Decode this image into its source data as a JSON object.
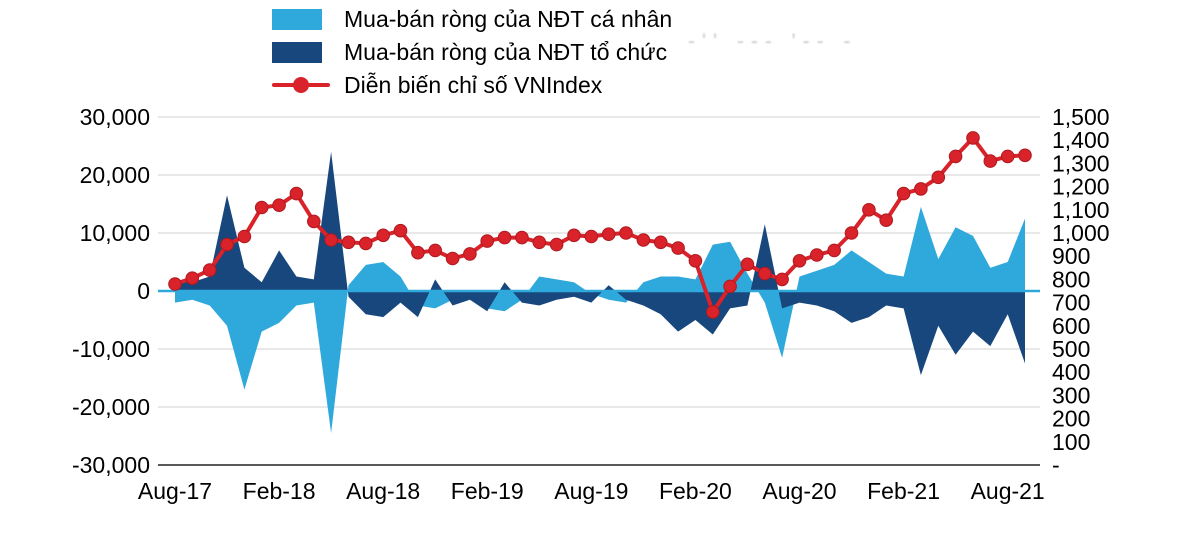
{
  "legend": [
    {
      "label": "Mua-bán ròng của NĐT cá nhân",
      "color": "#2FA9DC"
    },
    {
      "label": "Mua-bán ròng của NĐT tổ chức",
      "color": "#17477C"
    },
    {
      "label": "Diễn biến chỉ số VNIndex",
      "color": "#D92229"
    }
  ],
  "artifacts": {
    "smudge_text": "-''  ---  '--  -"
  },
  "chart_data": {
    "type": "area",
    "subtype": "combo dual-axis: two area series (left axis) + one line series with markers (right axis)",
    "grid": true,
    "legend_position": "top",
    "x": [
      "Aug-17",
      "Sep-17",
      "Oct-17",
      "Nov-17",
      "Dec-17",
      "Jan-18",
      "Feb-18",
      "Mar-18",
      "Apr-18",
      "May-18",
      "Jun-18",
      "Jul-18",
      "Aug-18",
      "Sep-18",
      "Oct-18",
      "Nov-18",
      "Dec-18",
      "Jan-19",
      "Feb-19",
      "Mar-19",
      "Apr-19",
      "May-19",
      "Jun-19",
      "Jul-19",
      "Aug-19",
      "Sep-19",
      "Oct-19",
      "Nov-19",
      "Dec-19",
      "Jan-20",
      "Feb-20",
      "Mar-20",
      "Apr-20",
      "May-20",
      "Jun-20",
      "Jul-20",
      "Aug-20",
      "Sep-20",
      "Oct-20",
      "Nov-20",
      "Dec-20",
      "Jan-21",
      "Feb-21",
      "Mar-21",
      "Apr-21",
      "May-21",
      "Jun-21",
      "Jul-21",
      "Aug-21",
      "Sep-21"
    ],
    "x_tick_labels": [
      "Aug-17",
      "Feb-18",
      "Aug-18",
      "Feb-19",
      "Aug-19",
      "Feb-20",
      "Aug-20",
      "Feb-21",
      "Aug-21"
    ],
    "left_axis": {
      "min": -30000,
      "max": 30000,
      "ticks": [
        {
          "label": "30,000",
          "value": 30000
        },
        {
          "label": "20,000",
          "value": 20000
        },
        {
          "label": "10,000",
          "value": 10000
        },
        {
          "label": "0",
          "value": 0
        },
        {
          "label": "-10,000",
          "value": -10000
        },
        {
          "label": "-20,000",
          "value": -20000
        },
        {
          "label": "-30,000",
          "value": -30000
        }
      ]
    },
    "right_axis": {
      "min": 0,
      "max": 1500,
      "ticks": [
        {
          "label": "1,500",
          "value": 1500
        },
        {
          "label": "1,400",
          "value": 1400
        },
        {
          "label": "1,300",
          "value": 1300
        },
        {
          "label": "1,200",
          "value": 1200
        },
        {
          "label": "1,100",
          "value": 1100
        },
        {
          "label": "1,000",
          "value": 1000
        },
        {
          "label": "900",
          "value": 900
        },
        {
          "label": "800",
          "value": 800
        },
        {
          "label": "700",
          "value": 700
        },
        {
          "label": "600",
          "value": 600
        },
        {
          "label": "500",
          "value": 500
        },
        {
          "label": "400",
          "value": 400
        },
        {
          "label": "300",
          "value": 300
        },
        {
          "label": "200",
          "value": 200
        },
        {
          "label": "100",
          "value": 100
        },
        {
          "label": "-",
          "value": 0
        }
      ]
    },
    "series": [
      {
        "id": "individual",
        "name": "Mua-bán ròng của NĐT cá nhân",
        "type": "area",
        "axis": "left",
        "color": "#2FA9DC",
        "values": [
          -2000,
          -1500,
          -2500,
          -6000,
          -17000,
          -7000,
          -5500,
          -2500,
          -2000,
          -24500,
          1000,
          4500,
          5000,
          2500,
          -2500,
          -3000,
          -1500,
          -1000,
          -3000,
          -3500,
          -1500,
          2500,
          2000,
          1500,
          -500,
          -1500,
          -2000,
          1500,
          2500,
          2500,
          2000,
          8000,
          8500,
          3000,
          -2000,
          -11500,
          2500,
          3500,
          4500,
          7000,
          5000,
          3000,
          2500,
          14500,
          5500,
          11000,
          9500,
          4000,
          5000,
          12500
        ]
      },
      {
        "id": "institutional",
        "name": "Mua-bán ròng của NĐT tổ chức",
        "type": "area",
        "axis": "left",
        "color": "#17477C",
        "values": [
          2000,
          1500,
          2500,
          16500,
          4000,
          1500,
          7000,
          2500,
          2000,
          24000,
          -1000,
          -4000,
          -4500,
          -2000,
          -4500,
          2000,
          -2500,
          -1500,
          -3500,
          1500,
          -2000,
          -2500,
          -1500,
          -1000,
          -2000,
          1000,
          -1500,
          -2500,
          -4000,
          -7000,
          -5000,
          -7500,
          -3000,
          -2500,
          11500,
          -3000,
          -2000,
          -2500,
          -3500,
          -5500,
          -4500,
          -2500,
          -3000,
          -14500,
          -6000,
          -11000,
          -7000,
          -9500,
          -4000,
          -12500
        ]
      },
      {
        "id": "vnindex",
        "name": "Diễn biến chỉ số VNIndex",
        "type": "line",
        "axis": "right",
        "color": "#D92229",
        "marker_stroke": "#AD1A20",
        "values": [
          780,
          805,
          840,
          950,
          985,
          1110,
          1120,
          1170,
          1050,
          970,
          960,
          955,
          990,
          1010,
          915,
          925,
          890,
          910,
          965,
          980,
          980,
          960,
          950,
          990,
          985,
          995,
          1000,
          970,
          960,
          935,
          880,
          660,
          770,
          865,
          825,
          800,
          880,
          905,
          925,
          1000,
          1100,
          1055,
          1170,
          1190,
          1240,
          1330,
          1410,
          1310,
          1330,
          1335
        ]
      }
    ]
  }
}
